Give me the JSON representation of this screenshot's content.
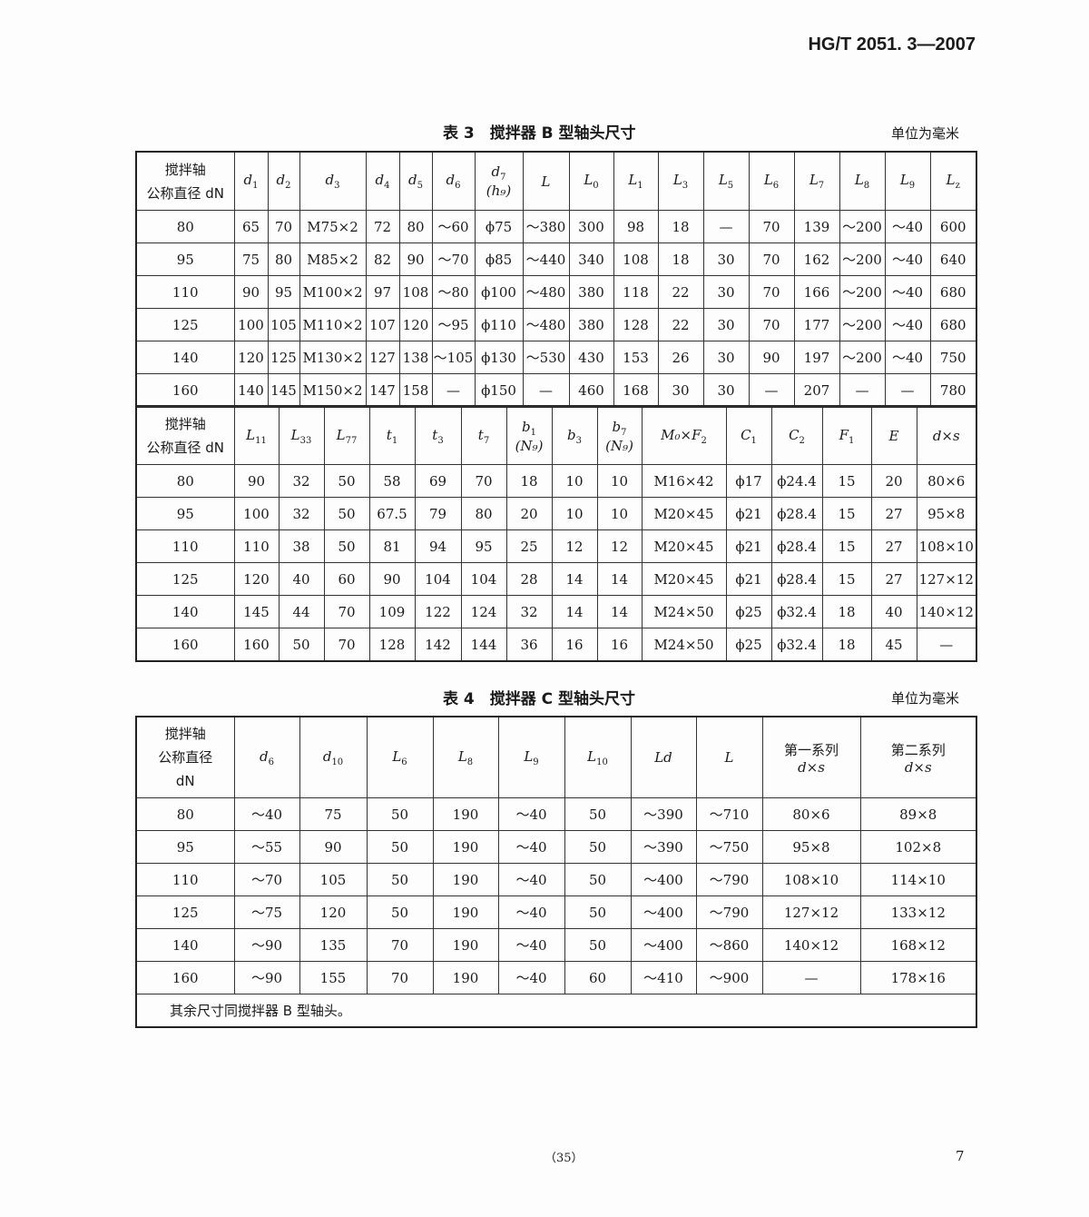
{
  "doc_number": "HG/T 2051. 3—2007",
  "table3": {
    "title": "表 3　搅拌器 B 型轴头尺寸",
    "unit": "单位为毫米",
    "part1": {
      "header_label": [
        "搅拌轴",
        "公称直径 dN"
      ],
      "headers": [
        {
          "t": "d",
          "s": "1"
        },
        {
          "t": "d",
          "s": "2"
        },
        {
          "t": "d",
          "s": "3"
        },
        {
          "t": "d",
          "s": "4"
        },
        {
          "t": "d",
          "s": "5"
        },
        {
          "t": "d",
          "s": "6"
        },
        {
          "t": "d",
          "s": "7",
          "sub2": "(h₉)"
        },
        {
          "t": "L",
          "s": ""
        },
        {
          "t": "L",
          "s": "0"
        },
        {
          "t": "L",
          "s": "1"
        },
        {
          "t": "L",
          "s": "3"
        },
        {
          "t": "L",
          "s": "5"
        },
        {
          "t": "L",
          "s": "6"
        },
        {
          "t": "L",
          "s": "7"
        },
        {
          "t": "L",
          "s": "8"
        },
        {
          "t": "L",
          "s": "9"
        },
        {
          "t": "L",
          "s": "z"
        }
      ],
      "rows": [
        [
          "80",
          "65",
          "70",
          "M75×2",
          "72",
          "80",
          "～60",
          "ϕ75",
          "～380",
          "300",
          "98",
          "18",
          "—",
          "70",
          "139",
          "～200",
          "～40",
          "600"
        ],
        [
          "95",
          "75",
          "80",
          "M85×2",
          "82",
          "90",
          "～70",
          "ϕ85",
          "～440",
          "340",
          "108",
          "18",
          "30",
          "70",
          "162",
          "～200",
          "～40",
          "640"
        ],
        [
          "110",
          "90",
          "95",
          "M100×2",
          "97",
          "108",
          "～80",
          "ϕ100",
          "～480",
          "380",
          "118",
          "22",
          "30",
          "70",
          "166",
          "～200",
          "～40",
          "680"
        ],
        [
          "125",
          "100",
          "105",
          "M110×2",
          "107",
          "120",
          "～95",
          "ϕ110",
          "～480",
          "380",
          "128",
          "22",
          "30",
          "70",
          "177",
          "～200",
          "～40",
          "680"
        ],
        [
          "140",
          "120",
          "125",
          "M130×2",
          "127",
          "138",
          "～105",
          "ϕ130",
          "～530",
          "430",
          "153",
          "26",
          "30",
          "90",
          "197",
          "～200",
          "～40",
          "750"
        ],
        [
          "160",
          "140",
          "145",
          "M150×2",
          "147",
          "158",
          "—",
          "ϕ150",
          "—",
          "460",
          "168",
          "30",
          "30",
          "—",
          "207",
          "—",
          "—",
          "780"
        ]
      ]
    },
    "part2": {
      "header_label": [
        "搅拌轴",
        "公称直径 dN"
      ],
      "headers": [
        {
          "t": "L",
          "s": "11"
        },
        {
          "t": "L",
          "s": "33"
        },
        {
          "t": "L",
          "s": "77"
        },
        {
          "t": "t",
          "s": "1"
        },
        {
          "t": "t",
          "s": "3"
        },
        {
          "t": "t",
          "s": "7"
        },
        {
          "t": "b",
          "s": "1",
          "sub2": "(N₉)"
        },
        {
          "t": "b",
          "s": "3"
        },
        {
          "t": "b",
          "s": "7",
          "sub2": "(N₉)"
        },
        {
          "t": "M₀×F",
          "s": "2"
        },
        {
          "t": "C",
          "s": "1"
        },
        {
          "t": "C",
          "s": "2"
        },
        {
          "t": "F",
          "s": "1"
        },
        {
          "t": "E",
          "s": ""
        },
        {
          "t": "d×s",
          "s": ""
        }
      ],
      "rows": [
        [
          "80",
          "90",
          "32",
          "50",
          "58",
          "69",
          "70",
          "18",
          "10",
          "10",
          "M16×42",
          "ϕ17",
          "ϕ24.4",
          "15",
          "20",
          "80×6"
        ],
        [
          "95",
          "100",
          "32",
          "50",
          "67.5",
          "79",
          "80",
          "20",
          "10",
          "10",
          "M20×45",
          "ϕ21",
          "ϕ28.4",
          "15",
          "27",
          "95×8"
        ],
        [
          "110",
          "110",
          "38",
          "50",
          "81",
          "94",
          "95",
          "25",
          "12",
          "12",
          "M20×45",
          "ϕ21",
          "ϕ28.4",
          "15",
          "27",
          "108×10"
        ],
        [
          "125",
          "120",
          "40",
          "60",
          "90",
          "104",
          "104",
          "28",
          "14",
          "14",
          "M20×45",
          "ϕ21",
          "ϕ28.4",
          "15",
          "27",
          "127×12"
        ],
        [
          "140",
          "145",
          "44",
          "70",
          "109",
          "122",
          "124",
          "32",
          "14",
          "14",
          "M24×50",
          "ϕ25",
          "ϕ32.4",
          "18",
          "40",
          "140×12"
        ],
        [
          "160",
          "160",
          "50",
          "70",
          "128",
          "142",
          "144",
          "36",
          "16",
          "16",
          "M24×50",
          "ϕ25",
          "ϕ32.4",
          "18",
          "45",
          "—"
        ]
      ]
    }
  },
  "table4": {
    "title": "表 4　搅拌器 C 型轴头尺寸",
    "unit": "单位为毫米",
    "header_label": [
      "搅拌轴",
      "公称直径",
      "dN"
    ],
    "headers": [
      {
        "t": "d",
        "s": "6"
      },
      {
        "t": "d",
        "s": "10"
      },
      {
        "t": "L",
        "s": "6"
      },
      {
        "t": "L",
        "s": "8"
      },
      {
        "t": "L",
        "s": "9"
      },
      {
        "t": "L",
        "s": "10"
      },
      {
        "t": "Ld",
        "s": ""
      },
      {
        "t": "L",
        "s": ""
      },
      {
        "t": "d×s",
        "s": "",
        "top": "第一系列"
      },
      {
        "t": "d×s",
        "s": "",
        "top": "第二系列"
      }
    ],
    "rows": [
      [
        "80",
        "～40",
        "75",
        "50",
        "190",
        "～40",
        "50",
        "～390",
        "～710",
        "80×6",
        "89×8"
      ],
      [
        "95",
        "～55",
        "90",
        "50",
        "190",
        "～40",
        "50",
        "～390",
        "～750",
        "95×8",
        "102×8"
      ],
      [
        "110",
        "～70",
        "105",
        "50",
        "190",
        "～40",
        "50",
        "～400",
        "～790",
        "108×10",
        "114×10"
      ],
      [
        "125",
        "～75",
        "120",
        "50",
        "190",
        "～40",
        "50",
        "～400",
        "～790",
        "127×12",
        "133×12"
      ],
      [
        "140",
        "～90",
        "135",
        "70",
        "190",
        "～40",
        "50",
        "～400",
        "～860",
        "140×12",
        "168×12"
      ],
      [
        "160",
        "～90",
        "155",
        "70",
        "190",
        "～40",
        "60",
        "～410",
        "～900",
        "—",
        "178×16"
      ]
    ],
    "note": "其余尺寸同搅拌器 B 型轴头。"
  },
  "footer": {
    "center": "（35）",
    "page": "7"
  }
}
